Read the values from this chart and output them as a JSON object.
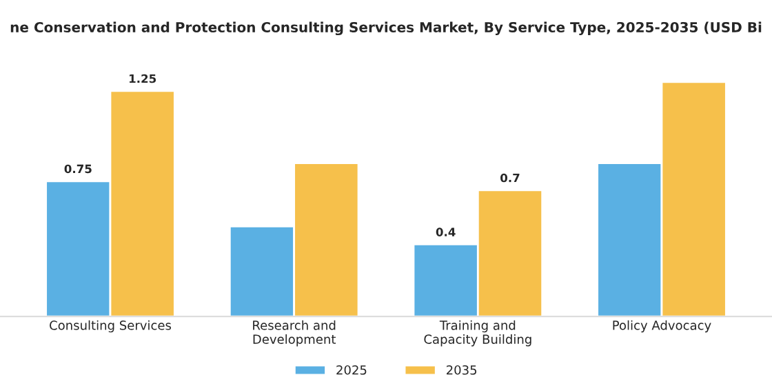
{
  "chart_data": {
    "type": "bar",
    "title": "ne Conservation and Protection Consulting Services Market, By Service Type, 2025-2035 (USD Bi",
    "categories": [
      "Consulting Services",
      "Research and\nDevelopment",
      "Training and\nCapacity Building",
      "Policy Advocacy"
    ],
    "series": [
      {
        "name": "2025",
        "color": "#5ab0e3",
        "values": [
          0.75,
          0.5,
          0.4,
          0.85
        ],
        "value_labels": [
          "0.75",
          null,
          "0.4",
          null
        ]
      },
      {
        "name": "2035",
        "color": "#f6c04b",
        "values": [
          1.25,
          0.85,
          0.7,
          1.3
        ],
        "value_labels": [
          "1.25",
          null,
          "0.7",
          null
        ]
      }
    ],
    "legend": "bottom",
    "grid": false
  }
}
